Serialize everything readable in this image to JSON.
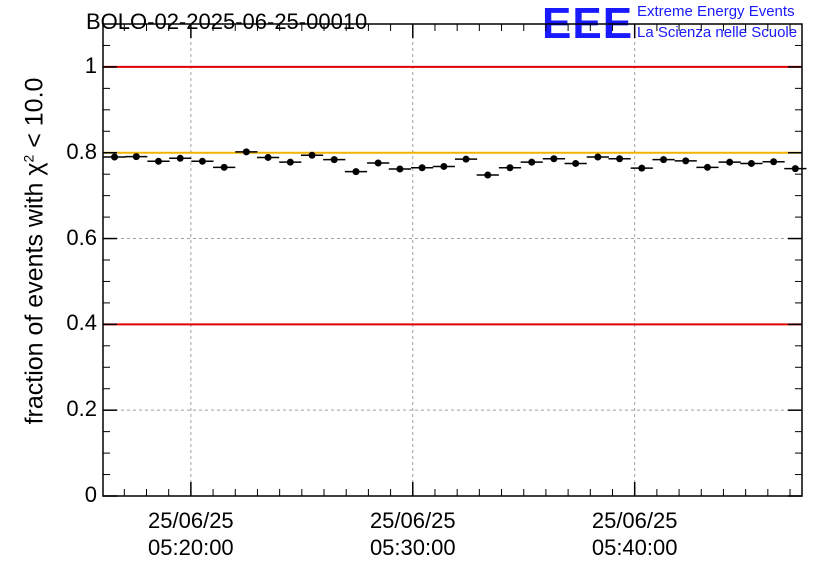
{
  "title": "BOLO-02-2025-06-25-00010",
  "logo": {
    "mark": "EEE",
    "line1": "Extreme Energy Events",
    "line2": "La Scienza nelle Scuole",
    "color": "#1a1aff"
  },
  "chart_data": {
    "type": "scatter",
    "title": "BOLO-02-2025-06-25-00010",
    "ylabel_pre": "fraction of events with",
    "ylabel_chi": "χ",
    "ylabel_sup": "2",
    "ylabel_post": "< 10.0",
    "xlabel": "",
    "ylim": [
      0,
      1.1
    ],
    "xlim_minutes": [
      5.02,
      20.77
    ],
    "grid": true,
    "yticks": [
      {
        "value": 0,
        "label": "0"
      },
      {
        "value": 0.2,
        "label": "0.2"
      },
      {
        "value": 0.4,
        "label": "0.4"
      },
      {
        "value": 0.6,
        "label": "0.6"
      },
      {
        "value": 0.8,
        "label": "0.8"
      },
      {
        "value": 1,
        "label": "1"
      }
    ],
    "xticks": [
      {
        "minutes": 7,
        "date": "25/06/25",
        "time": "05:20:00"
      },
      {
        "minutes": 12,
        "date": "25/06/25",
        "time": "05:30:00"
      },
      {
        "minutes": 17,
        "date": "25/06/25",
        "time": "05:40:00"
      }
    ],
    "x_minor_ticks_minutes": [
      5.5,
      6.0,
      6.5,
      7.5,
      8.0,
      8.5,
      9.0,
      9.5,
      10.0,
      10.5,
      11.0,
      11.5,
      12.5,
      13.0,
      13.5,
      14.0,
      14.5,
      15.0,
      15.5,
      16.0,
      16.5,
      17.5,
      18.0,
      18.5,
      19.0,
      19.5,
      20.0,
      20.5
    ],
    "y_minor_step": 0.05,
    "x_bin_width_minutes": 0.5,
    "reference_lines": [
      {
        "y": 1.0,
        "color": "#e00000"
      },
      {
        "y": 0.8,
        "color": "#f2b400"
      },
      {
        "y": 0.4,
        "color": "#e00000"
      }
    ],
    "series": [
      {
        "name": "fraction",
        "color": "#000000",
        "x_minutes": [
          5.28,
          5.77,
          6.27,
          6.76,
          7.26,
          7.75,
          8.25,
          8.74,
          9.24,
          9.73,
          10.23,
          10.72,
          11.22,
          11.71,
          12.21,
          12.7,
          13.2,
          13.69,
          14.19,
          14.68,
          15.18,
          15.67,
          16.17,
          16.66,
          17.16,
          17.65,
          18.15,
          18.64,
          19.14,
          19.63,
          20.13,
          20.62
        ],
        "y": [
          0.79,
          0.791,
          0.78,
          0.787,
          0.78,
          0.766,
          0.802,
          0.789,
          0.778,
          0.794,
          0.784,
          0.756,
          0.776,
          0.762,
          0.765,
          0.768,
          0.785,
          0.748,
          0.765,
          0.778,
          0.786,
          0.775,
          0.79,
          0.786,
          0.764,
          0.784,
          0.781,
          0.766,
          0.778,
          0.775,
          0.779,
          0.763
        ]
      }
    ]
  }
}
